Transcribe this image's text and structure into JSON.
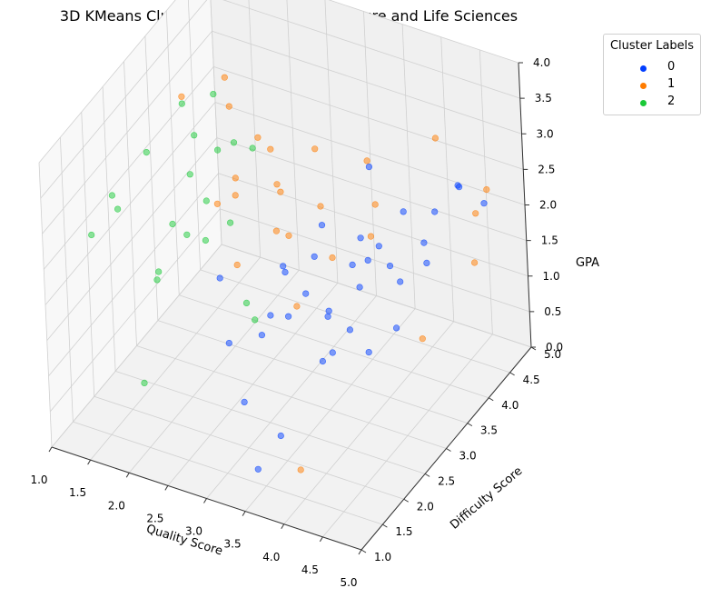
{
  "chart_data": {
    "type": "scatter",
    "projection": "3d",
    "title": "3D KMeans Clustering Results for Agriculture and Life Sciences",
    "xlabel": "Quality Score",
    "ylabel": "Difficulty Score",
    "zlabel": "GPA",
    "xlim": [
      1.0,
      5.0
    ],
    "ylim": [
      1.0,
      5.0
    ],
    "zlim": [
      0.0,
      4.0
    ],
    "xticks": [
      "1.0",
      "1.5",
      "2.0",
      "2.5",
      "3.0",
      "3.5",
      "4.0",
      "4.5",
      "5.0"
    ],
    "yticks": [
      "1.0",
      "1.5",
      "2.0",
      "2.5",
      "3.0",
      "3.5",
      "4.0",
      "4.5",
      "5.0"
    ],
    "zticks": [
      "0.0",
      "0.5",
      "1.0",
      "1.5",
      "2.0",
      "2.5",
      "3.0",
      "3.5",
      "4.0"
    ],
    "grid": true,
    "legend": {
      "title": "Cluster Labels",
      "placement": "upper-right-outside"
    },
    "series": [
      {
        "name": "0",
        "color": "#023eff",
        "points": [
          [
            3.5,
            3.0,
            2.6
          ],
          [
            3.8,
            3.6,
            3.1
          ],
          [
            4.0,
            3.4,
            2.2
          ],
          [
            4.5,
            3.6,
            2.0
          ],
          [
            4.2,
            2.8,
            2.5
          ],
          [
            3.6,
            2.4,
            2.1
          ],
          [
            3.9,
            3.1,
            1.8
          ],
          [
            4.4,
            3.3,
            2.9
          ],
          [
            3.7,
            2.7,
            1.6
          ],
          [
            4.1,
            2.5,
            1.7
          ],
          [
            3.4,
            2.3,
            2.4
          ],
          [
            3.2,
            2.6,
            2.2
          ],
          [
            4.3,
            3.9,
            2.0
          ],
          [
            4.6,
            4.2,
            2.7
          ],
          [
            3.9,
            2.2,
            1.4
          ],
          [
            3.3,
            2.1,
            1.9
          ],
          [
            4.0,
            3.0,
            2.6
          ],
          [
            3.6,
            2.9,
            1.5
          ],
          [
            3.8,
            2.6,
            1.2
          ],
          [
            4.2,
            3.5,
            1.7
          ],
          [
            3.0,
            2.4,
            1.3
          ],
          [
            3.5,
            2.8,
            2.3
          ],
          [
            4.4,
            4.0,
            2.4
          ],
          [
            3.7,
            3.3,
            1.9
          ],
          [
            4.1,
            2.9,
            1.1
          ],
          [
            3.3,
            2.5,
            1.6
          ],
          [
            2.8,
            2.0,
            1.4
          ],
          [
            4.7,
            4.6,
            2.2
          ],
          [
            4.5,
            4.4,
            2.5
          ],
          [
            3.9,
            3.8,
            1.6
          ],
          [
            3.2,
            1.6,
            1.0
          ],
          [
            3.6,
            1.7,
            0.6
          ],
          [
            3.4,
            1.5,
            0.2
          ],
          [
            4.3,
            3.2,
            1.3
          ],
          [
            2.6,
            2.2,
            2.1
          ]
        ]
      },
      {
        "name": "1",
        "color": "#ff7c00",
        "points": [
          [
            2.0,
            3.6,
            3.3
          ],
          [
            1.9,
            3.7,
            3.6
          ],
          [
            2.3,
            3.7,
            2.9
          ],
          [
            2.4,
            3.8,
            2.7
          ],
          [
            3.1,
            3.6,
            3.1
          ],
          [
            2.7,
            3.4,
            2.6
          ],
          [
            3.2,
            3.5,
            2.4
          ],
          [
            3.8,
            3.7,
            2.5
          ],
          [
            4.8,
            4.5,
            2.5
          ],
          [
            4.7,
            4.4,
            2.2
          ],
          [
            4.1,
            4.6,
            2.9
          ],
          [
            3.5,
            3.2,
            2.0
          ],
          [
            2.9,
            3.0,
            2.3
          ],
          [
            2.2,
            2.9,
            2.5
          ],
          [
            2.5,
            2.8,
            2.8
          ],
          [
            3.6,
            3.9,
            2.9
          ],
          [
            3.9,
            3.4,
            2.3
          ],
          [
            2.8,
            3.3,
            2.6
          ],
          [
            2.6,
            2.6,
            2.0
          ],
          [
            3.3,
            2.7,
            1.6
          ],
          [
            4.6,
            4.5,
            1.4
          ],
          [
            4.4,
            3.6,
            0.9
          ],
          [
            3.9,
            1.6,
            0.3
          ],
          [
            3.0,
            3.1,
            2.2
          ],
          [
            1.5,
            3.4,
            3.4
          ],
          [
            2.1,
            3.5,
            2.4
          ]
        ]
      },
      {
        "name": "2",
        "color": "#1ac938",
        "points": [
          [
            1.0,
            2.6,
            2.4
          ],
          [
            1.0,
            2.1,
            2.2
          ],
          [
            1.3,
            2.2,
            2.6
          ],
          [
            1.3,
            2.9,
            2.9
          ],
          [
            1.8,
            3.0,
            2.7
          ],
          [
            1.7,
            3.3,
            3.0
          ],
          [
            1.5,
            3.4,
            3.3
          ],
          [
            1.6,
            2.9,
            2.0
          ],
          [
            1.9,
            2.7,
            2.1
          ],
          [
            2.0,
            3.3,
            2.9
          ],
          [
            2.2,
            2.6,
            2.2
          ],
          [
            2.4,
            3.4,
            3.0
          ],
          [
            2.3,
            3.0,
            2.2
          ],
          [
            1.8,
            2.2,
            1.9
          ],
          [
            1.6,
            2.5,
            1.5
          ],
          [
            1.8,
            3.6,
            3.4
          ],
          [
            2.7,
            2.6,
            1.5
          ],
          [
            2.8,
            2.6,
            1.3
          ],
          [
            2.1,
            3.5,
            2.9
          ],
          [
            2.0,
            3.0,
            2.4
          ],
          [
            1.9,
            1.6,
            0.8
          ]
        ]
      }
    ]
  }
}
